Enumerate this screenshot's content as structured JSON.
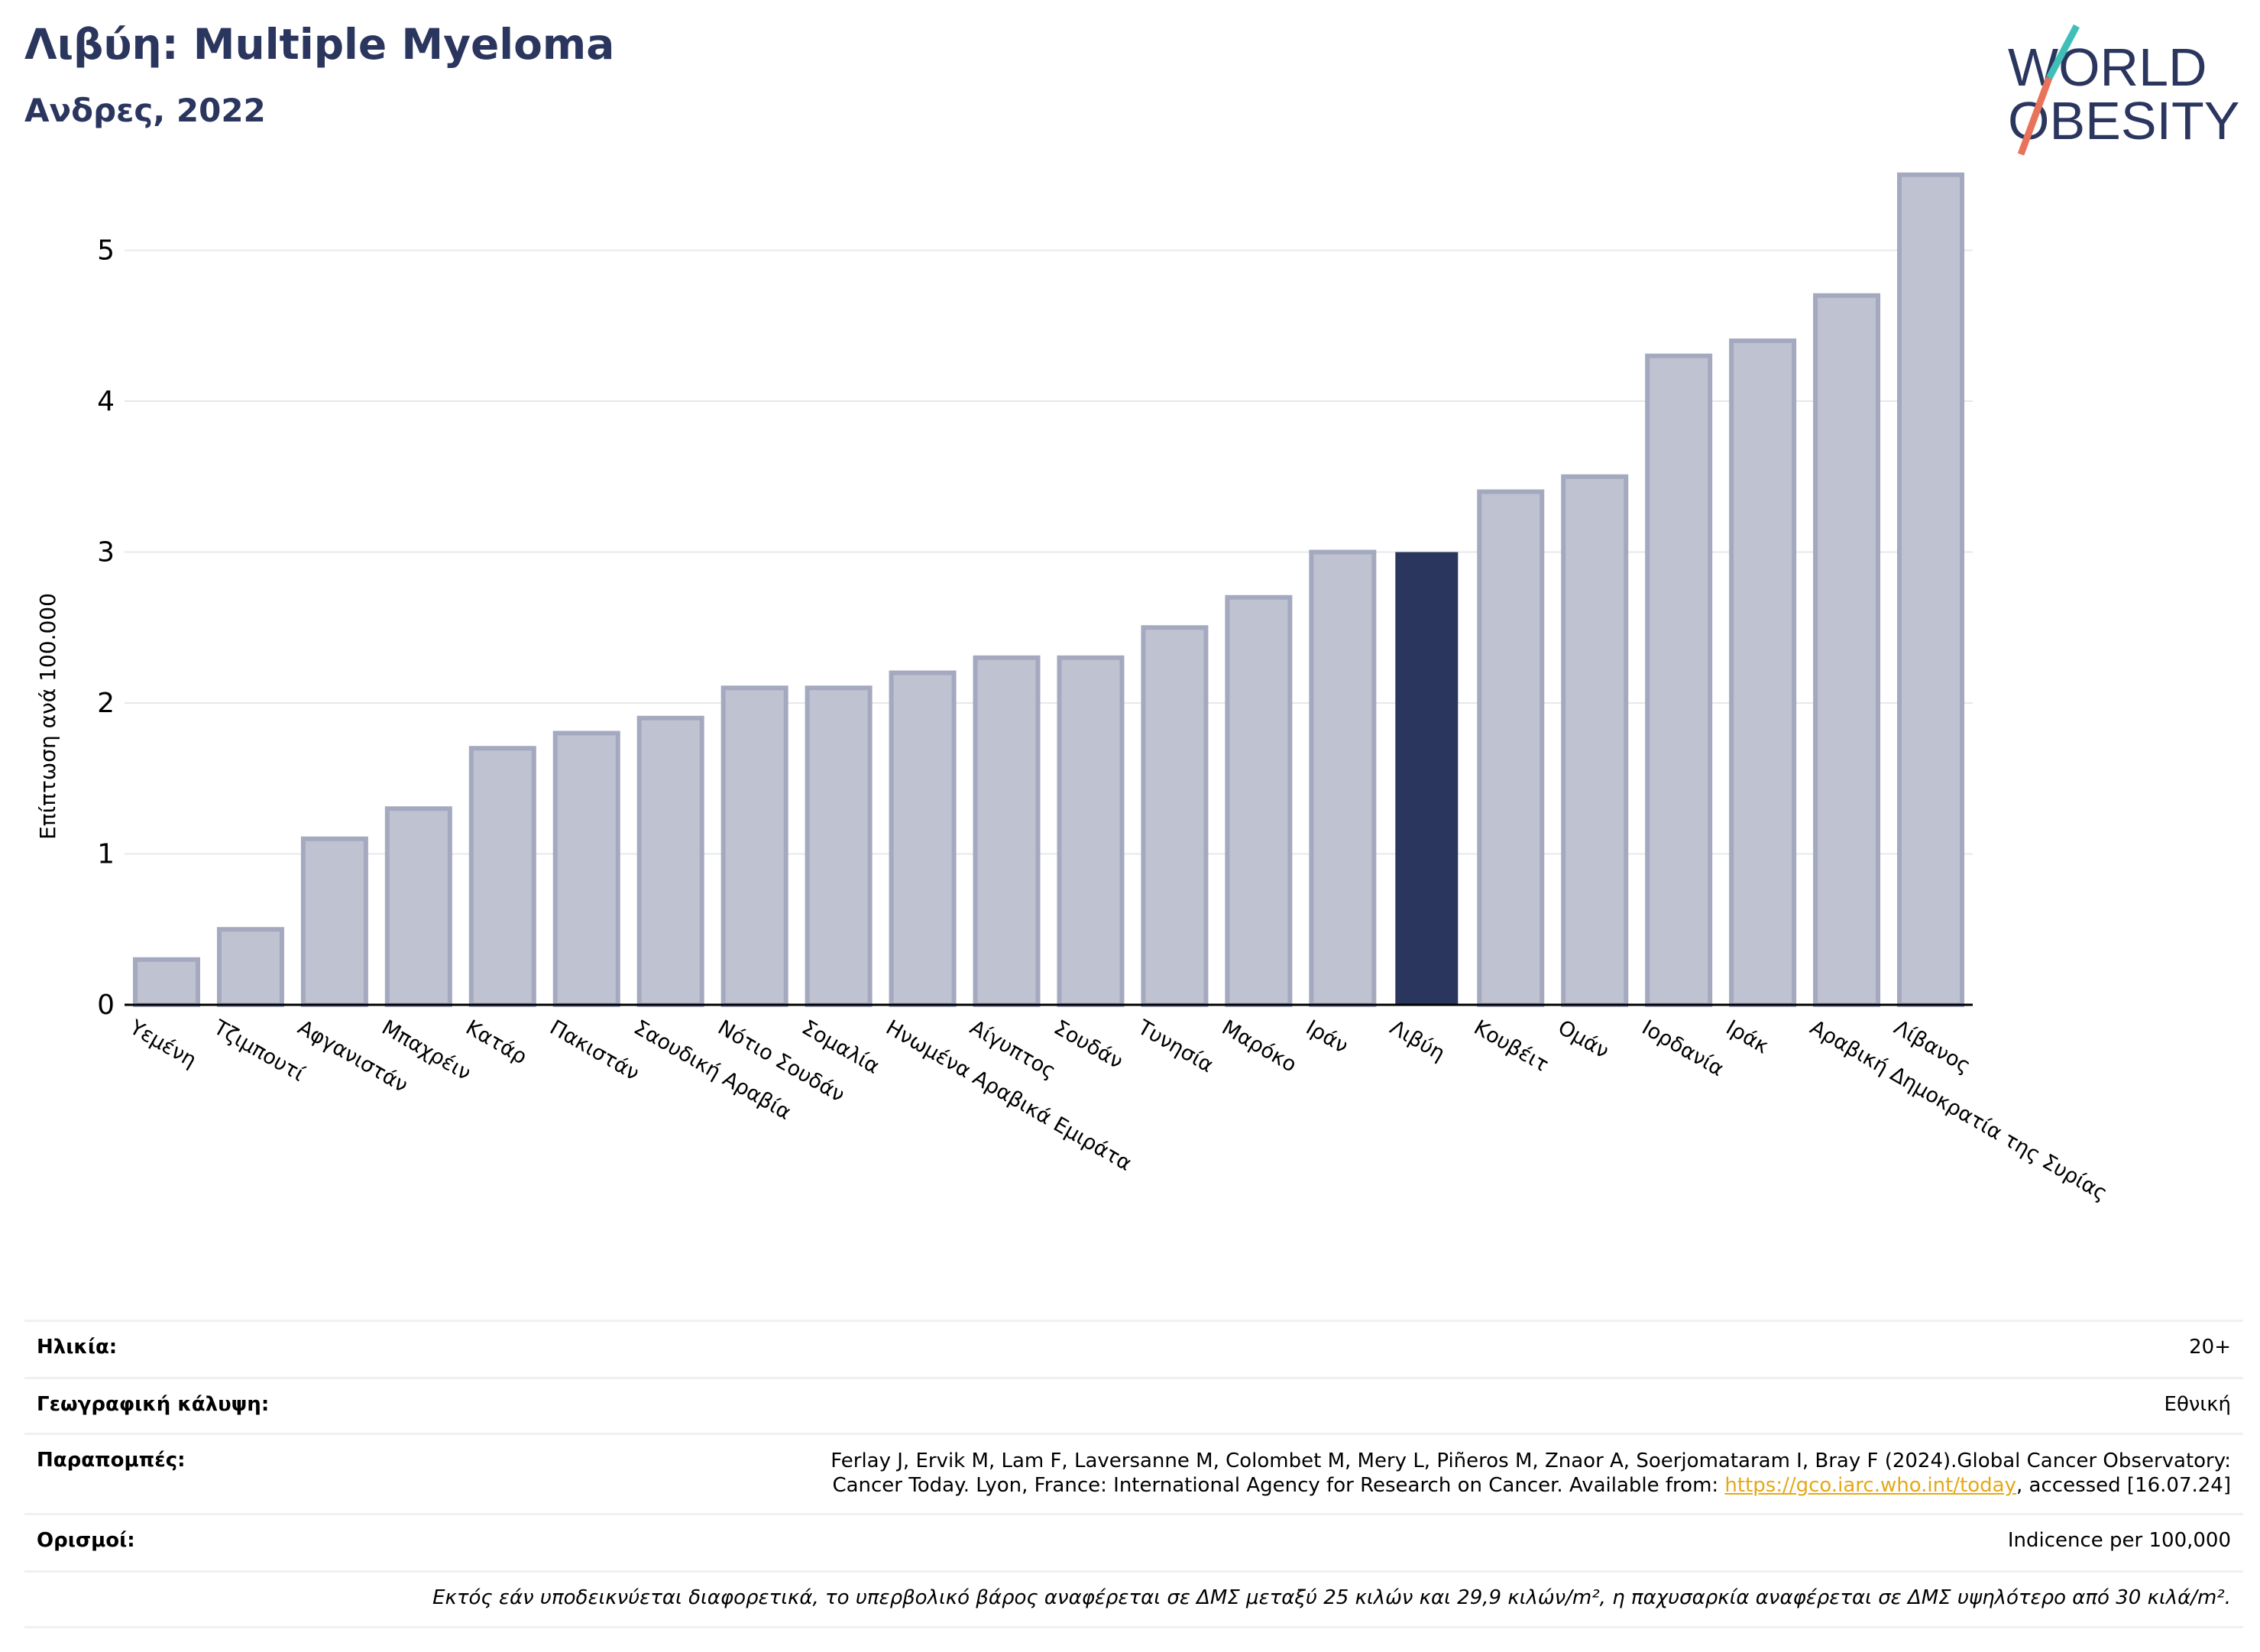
{
  "header": {
    "title": "Λιβύη: Multiple Myeloma",
    "subtitle": "Ανδρες, 2022"
  },
  "logo": {
    "line1": "WORLD",
    "line2": "OBESITY",
    "colors": {
      "text": "#2b365f",
      "slash_top": "#3fbfb8",
      "slash_bottom": "#e8735a"
    }
  },
  "colors": {
    "bar": "#bfc2d0",
    "bar_edge": "#a4a9bf",
    "highlight": "#2b365f",
    "grid": "#e6e8ec",
    "axis": "#000000"
  },
  "chart_data": {
    "type": "bar",
    "title": "",
    "xlabel": "",
    "ylabel": "Επίπτωση ανά 100.000",
    "ylim": [
      0,
      5.6
    ],
    "yticks": [
      0,
      1,
      2,
      3,
      4,
      5
    ],
    "grid": true,
    "highlight": "Λιβύη",
    "categories": [
      "Υεμένη",
      "Τζιμπουτί",
      "Αφγανιστάν",
      "Μπαχρέιν",
      "Κατάρ",
      "Πακιστάν",
      "Σαουδική Αραβία",
      "Νότιο Σουδάν",
      "Σομαλία",
      "Ηνωμένα Αραβικά Εμιράτα",
      "Αίγυπτος",
      "Σουδάν",
      "Τυνησία",
      "Μαρόκο",
      "Ιράν",
      "Λιβύη",
      "Κουβέιτ",
      "Ομάν",
      "Ιορδανία",
      "Ιράκ",
      "Αραβική Δημοκρατία της Συρίας",
      "Λίβανος"
    ],
    "values": [
      0.3,
      0.5,
      1.1,
      1.3,
      1.7,
      1.8,
      1.9,
      2.1,
      2.1,
      2.2,
      2.3,
      2.3,
      2.5,
      2.7,
      3.0,
      3.0,
      3.4,
      3.5,
      4.3,
      4.4,
      4.7,
      5.5
    ]
  },
  "info": {
    "age_label": "Ηλικία:",
    "age_value": "20+",
    "coverage_label": "Γεωγραφική κάλυψη:",
    "coverage_value": "Εθνική",
    "refs_label": "Παραπομπές:",
    "refs_line1": "Ferlay J, Ervik M, Lam F, Laversanne M, Colombet M, Mery L, Piñeros M, Znaor A, Soerjomataram I, Bray F (2024).Global Cancer Observatory:",
    "refs_line2_pre": "Cancer Today. Lyon, France: International Agency for Research on Cancer. Available from: ",
    "refs_link": "https://gco.iarc.who.int/today",
    "refs_line2_post": ", accessed [16.07.24]",
    "defs_label": "Ορισμοί:",
    "defs_value": "Indicence per 100,000",
    "note": "Εκτός εάν υποδεικνύεται διαφορετικά, το υπερβολικό βάρος αναφέρεται σε ΔΜΣ μεταξύ 25 κιλών και 29,9 κιλών/m², η παχυσαρκία αναφέρεται σε ΔΜΣ υψηλότερο από 30 κιλά/m²."
  }
}
